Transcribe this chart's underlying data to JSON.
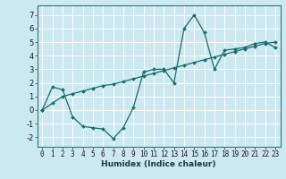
{
  "xlabel": "Humidex (Indice chaleur)",
  "bg_color": "#cce8f0",
  "line_color": "#1a6b6b",
  "grid_color": "#ffffff",
  "xlim": [
    -0.5,
    23.5
  ],
  "ylim": [
    -2.7,
    7.7
  ],
  "x_ticks": [
    0,
    1,
    2,
    3,
    4,
    5,
    6,
    7,
    8,
    9,
    10,
    11,
    12,
    13,
    14,
    15,
    16,
    17,
    18,
    19,
    20,
    21,
    22,
    23
  ],
  "y_ticks": [
    -2,
    -1,
    0,
    1,
    2,
    3,
    4,
    5,
    6,
    7
  ],
  "series1_x": [
    0,
    1,
    2,
    3,
    4,
    5,
    6,
    7,
    8,
    9,
    10,
    11,
    12,
    13,
    14,
    15,
    16,
    17,
    18,
    19,
    20,
    21,
    22,
    23
  ],
  "series1_y": [
    0.0,
    1.7,
    1.5,
    -0.5,
    -1.2,
    -1.3,
    -1.4,
    -2.1,
    -1.3,
    0.2,
    2.8,
    3.0,
    3.0,
    2.0,
    6.0,
    7.0,
    5.7,
    3.0,
    4.4,
    4.5,
    4.6,
    4.9,
    5.0,
    4.6
  ],
  "series2_x": [
    0,
    1,
    2,
    3,
    4,
    5,
    6,
    7,
    8,
    9,
    10,
    11,
    12,
    13,
    14,
    15,
    16,
    17,
    18,
    19,
    20,
    21,
    22,
    23
  ],
  "series2_y": [
    0.0,
    0.5,
    1.0,
    1.2,
    1.4,
    1.6,
    1.8,
    1.9,
    2.1,
    2.3,
    2.5,
    2.7,
    2.9,
    3.1,
    3.3,
    3.5,
    3.7,
    3.9,
    4.1,
    4.3,
    4.5,
    4.7,
    4.9,
    5.0
  ],
  "tick_fontsize": 5.5,
  "xlabel_fontsize": 6.5,
  "marker_size": 2.0
}
